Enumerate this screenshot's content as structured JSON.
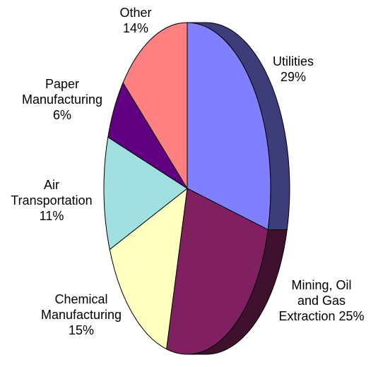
{
  "chart_data": {
    "type": "pie",
    "style": "3d-tilted",
    "title": "",
    "slices": [
      {
        "label_lines": [
          "Utilities",
          "29%"
        ],
        "value": 29,
        "color": "#8080ff",
        "side_color": "#3d3d7a"
      },
      {
        "label_lines": [
          "Mining, Oil",
          "and Gas",
          "Extraction 25%"
        ],
        "value": 25,
        "color": "#802060",
        "side_color": "#40102f"
      },
      {
        "label_lines": [
          "Chemical",
          "Manufacturing",
          "15%"
        ],
        "value": 15,
        "color": "#ffffc0"
      },
      {
        "label_lines": [
          "Air",
          "Transportation",
          "11%"
        ],
        "value": 11,
        "color": "#a0e0e0"
      },
      {
        "label_lines": [
          "Paper",
          "Manufacturing",
          "6%"
        ],
        "value": 6,
        "color": "#600080"
      },
      {
        "label_lines": [
          "Other",
          "14%"
        ],
        "value": 14,
        "color": "#ff8080"
      }
    ]
  }
}
